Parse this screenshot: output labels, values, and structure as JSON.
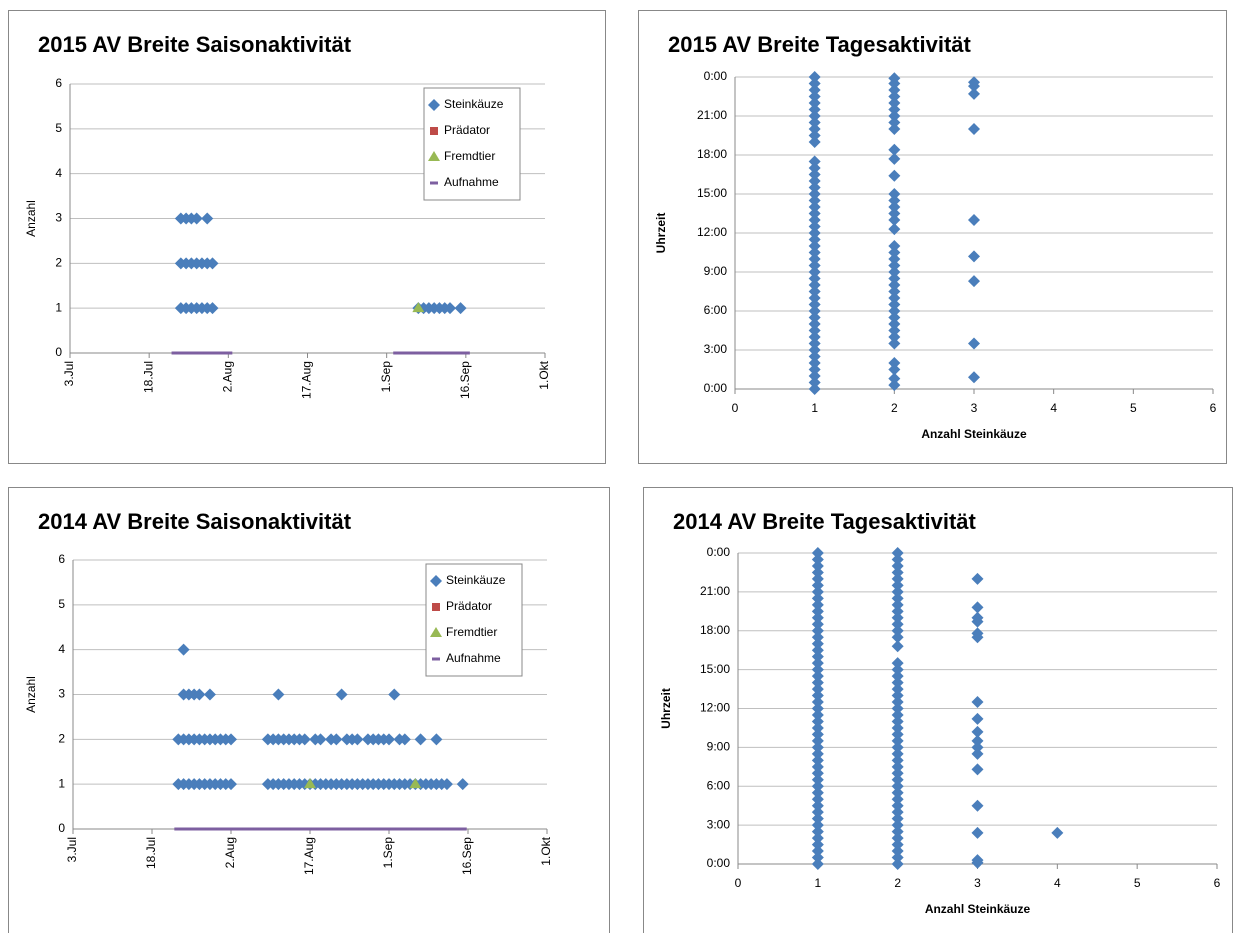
{
  "chart_data": [
    {
      "type": "scatter",
      "title": "2015 AV Breite  Saisonaktivität",
      "ylabel": "Anzahl",
      "legend": "upper right",
      "grid": true,
      "xlim": [
        184,
        274
      ],
      "xticks": [
        {
          "value": 184,
          "label": "3.Jul"
        },
        {
          "value": 199,
          "label": "18.Jul"
        },
        {
          "value": 214,
          "label": "2.Aug"
        },
        {
          "value": 229,
          "label": "17.Aug"
        },
        {
          "value": 244,
          "label": "1.Sep"
        },
        {
          "value": 259,
          "label": "16.Sep"
        },
        {
          "value": 274,
          "label": "1.Okt"
        }
      ],
      "ylim": [
        0,
        6
      ],
      "yticks": [
        0,
        1,
        2,
        3,
        4,
        5,
        6
      ],
      "series": [
        {
          "name": "Steinkäuze",
          "color": "#4a7ebb",
          "marker": "diamond",
          "x": [
            205,
            206,
            207,
            208,
            210,
            205,
            206,
            207,
            208,
            209,
            210,
            211,
            205,
            206,
            207,
            208,
            209,
            210,
            211,
            250,
            251,
            252,
            253,
            254,
            255,
            256,
            258
          ],
          "values": [
            3,
            3,
            3,
            3,
            3,
            2,
            2,
            2,
            2,
            2,
            2,
            2,
            1,
            1,
            1,
            1,
            1,
            1,
            1,
            1,
            1,
            1,
            1,
            1,
            1,
            1,
            1
          ]
        },
        {
          "name": "Prädator",
          "color": "#be4b48",
          "marker": "square",
          "x": [],
          "values": []
        },
        {
          "name": "Fremdtier",
          "color": "#98b954",
          "marker": "triangle",
          "x": [
            250
          ],
          "values": [
            1
          ]
        },
        {
          "name": "Aufnahme",
          "color": "#7d5fa0",
          "marker": "dash",
          "x": [
            204,
            205,
            206,
            207,
            208,
            209,
            210,
            211,
            212,
            213,
            214,
            246,
            247,
            248,
            249,
            250,
            251,
            252,
            253,
            254,
            255,
            256,
            257,
            258,
            259
          ],
          "values": [
            0,
            0,
            0,
            0,
            0,
            0,
            0,
            0,
            0,
            0,
            0,
            0,
            0,
            0,
            0,
            0,
            0,
            0,
            0,
            0,
            0,
            0,
            0,
            0,
            0
          ]
        }
      ]
    },
    {
      "type": "scatter",
      "title": "2015 AV Breite  Tagesaktivität",
      "xlabel": "Anzahl Steinkäuze",
      "ylabel": "Uhrzeit",
      "grid": true,
      "xlim": [
        0,
        6
      ],
      "xticks": [
        0,
        1,
        2,
        3,
        4,
        5,
        6
      ],
      "ylim": [
        0,
        24
      ],
      "yticks": [
        {
          "value": 0,
          "label": "0:00"
        },
        {
          "value": 3,
          "label": "3:00"
        },
        {
          "value": 6,
          "label": "6:00"
        },
        {
          "value": 9,
          "label": "9:00"
        },
        {
          "value": 12,
          "label": "12:00"
        },
        {
          "value": 15,
          "label": "15:00"
        },
        {
          "value": 18,
          "label": "18:00"
        },
        {
          "value": 21,
          "label": "21:00"
        },
        {
          "value": 24,
          "label": "0:00"
        }
      ],
      "series": [
        {
          "color": "#4a7ebb",
          "marker": "diamond",
          "x": 1,
          "values": [
            0,
            0.5,
            1,
            1.5,
            2,
            2.5,
            3,
            3.5,
            4,
            4.5,
            5,
            5.5,
            6,
            6.5,
            7,
            7.5,
            8,
            8.5,
            9,
            9.5,
            10,
            10.5,
            11,
            11.5,
            12,
            12.5,
            13,
            13.5,
            14,
            14.5,
            15,
            15.5,
            16,
            16.5,
            17,
            17.5,
            19,
            19.5,
            20,
            20.5,
            21,
            21.5,
            22,
            22.5,
            23,
            23.5,
            24
          ]
        },
        {
          "color": "#4a7ebb",
          "marker": "diamond",
          "x": 2,
          "values": [
            0.3,
            0.8,
            1.5,
            2,
            3.5,
            4,
            4.5,
            5,
            5.5,
            6,
            6.5,
            7,
            7.5,
            8,
            8.5,
            9,
            9.5,
            10,
            10.5,
            11,
            12.3,
            13,
            13.5,
            14,
            14.5,
            15,
            16.4,
            17.7,
            18.4,
            20,
            20.5,
            21,
            21.5,
            22,
            22.5,
            23,
            23.5,
            23.9
          ]
        },
        {
          "color": "#4a7ebb",
          "marker": "diamond",
          "x": 3,
          "values": [
            0.9,
            3.5,
            8.3,
            10.2,
            13,
            20,
            22.7,
            23.3,
            23.6
          ]
        }
      ]
    },
    {
      "type": "scatter",
      "title": "2014 AV Breite  Saisonaktivität",
      "ylabel": "Anzahl",
      "legend": "upper right",
      "grid": true,
      "xlim": [
        184,
        274
      ],
      "xticks": [
        {
          "value": 184,
          "label": "3.Jul"
        },
        {
          "value": 199,
          "label": "18.Jul"
        },
        {
          "value": 214,
          "label": "2.Aug"
        },
        {
          "value": 229,
          "label": "17.Aug"
        },
        {
          "value": 244,
          "label": "1.Sep"
        },
        {
          "value": 259,
          "label": "16.Sep"
        },
        {
          "value": 274,
          "label": "1.Okt"
        }
      ],
      "ylim": [
        0,
        6
      ],
      "yticks": [
        0,
        1,
        2,
        3,
        4,
        5,
        6
      ],
      "series": [
        {
          "name": "Steinkäuze",
          "color": "#4a7ebb",
          "marker": "diamond",
          "x": [
            205,
            205,
            206,
            207,
            208,
            210,
            223,
            235,
            245,
            204,
            205,
            206,
            207,
            208,
            209,
            210,
            211,
            212,
            213,
            214,
            221,
            222,
            223,
            224,
            225,
            226,
            227,
            228,
            230,
            231,
            233,
            234,
            236,
            237,
            238,
            240,
            241,
            242,
            243,
            244,
            246,
            247,
            250,
            253,
            204,
            205,
            206,
            207,
            208,
            209,
            210,
            211,
            212,
            213,
            214,
            221,
            222,
            223,
            224,
            225,
            226,
            227,
            228,
            229,
            230,
            231,
            232,
            233,
            234,
            235,
            236,
            237,
            238,
            239,
            240,
            241,
            242,
            243,
            244,
            245,
            246,
            247,
            248,
            249,
            250,
            251,
            252,
            253,
            254,
            255,
            258
          ],
          "values": [
            4,
            3,
            3,
            3,
            3,
            3,
            3,
            3,
            3,
            2,
            2,
            2,
            2,
            2,
            2,
            2,
            2,
            2,
            2,
            2,
            2,
            2,
            2,
            2,
            2,
            2,
            2,
            2,
            2,
            2,
            2,
            2,
            2,
            2,
            2,
            2,
            2,
            2,
            2,
            2,
            2,
            2,
            2,
            2,
            1,
            1,
            1,
            1,
            1,
            1,
            1,
            1,
            1,
            1,
            1,
            1,
            1,
            1,
            1,
            1,
            1,
            1,
            1,
            1,
            1,
            1,
            1,
            1,
            1,
            1,
            1,
            1,
            1,
            1,
            1,
            1,
            1,
            1,
            1,
            1,
            1,
            1,
            1,
            1,
            1,
            1,
            1,
            1,
            1,
            1,
            1
          ]
        },
        {
          "name": "Prädator",
          "color": "#be4b48",
          "marker": "square",
          "x": [],
          "values": []
        },
        {
          "name": "Fremdtier",
          "color": "#98b954",
          "marker": "triangle",
          "x": [
            229,
            249
          ],
          "values": [
            1,
            1
          ]
        },
        {
          "name": "Aufnahme",
          "color": "#7d5fa0",
          "marker": "dash",
          "x": [
            204,
            205,
            206,
            207,
            208,
            209,
            210,
            211,
            212,
            213,
            214,
            215,
            216,
            217,
            218,
            219,
            220,
            221,
            222,
            223,
            224,
            225,
            226,
            227,
            228,
            229,
            230,
            231,
            232,
            233,
            234,
            235,
            236,
            237,
            238,
            239,
            240,
            241,
            242,
            243,
            244,
            245,
            246,
            247,
            248,
            249,
            250,
            251,
            252,
            253,
            254,
            255,
            256,
            257,
            258
          ],
          "values": [
            0,
            0,
            0,
            0,
            0,
            0,
            0,
            0,
            0,
            0,
            0,
            0,
            0,
            0,
            0,
            0,
            0,
            0,
            0,
            0,
            0,
            0,
            0,
            0,
            0,
            0,
            0,
            0,
            0,
            0,
            0,
            0,
            0,
            0,
            0,
            0,
            0,
            0,
            0,
            0,
            0,
            0,
            0,
            0,
            0,
            0,
            0,
            0,
            0,
            0,
            0,
            0,
            0,
            0,
            0
          ]
        }
      ]
    },
    {
      "type": "scatter",
      "title": "2014 AV Breite  Tagesaktivität",
      "xlabel": "Anzahl Steinkäuze",
      "ylabel": "Uhrzeit",
      "grid": true,
      "xlim": [
        0,
        6
      ],
      "xticks": [
        0,
        1,
        2,
        3,
        4,
        5,
        6
      ],
      "ylim": [
        0,
        24
      ],
      "yticks": [
        {
          "value": 0,
          "label": "0:00"
        },
        {
          "value": 3,
          "label": "3:00"
        },
        {
          "value": 6,
          "label": "6:00"
        },
        {
          "value": 9,
          "label": "9:00"
        },
        {
          "value": 12,
          "label": "12:00"
        },
        {
          "value": 15,
          "label": "15:00"
        },
        {
          "value": 18,
          "label": "18:00"
        },
        {
          "value": 21,
          "label": "21:00"
        },
        {
          "value": 24,
          "label": "0:00"
        }
      ],
      "series": [
        {
          "color": "#4a7ebb",
          "marker": "diamond",
          "x": 1,
          "values": [
            0,
            0.5,
            1,
            1.5,
            2,
            2.5,
            3,
            3.5,
            4,
            4.5,
            5,
            5.5,
            6,
            6.5,
            7,
            7.5,
            8,
            8.5,
            9,
            9.5,
            10,
            10.5,
            11,
            11.5,
            12,
            12.5,
            13,
            13.5,
            14,
            14.5,
            15,
            15.5,
            16,
            16.5,
            17,
            17.5,
            18,
            18.5,
            19,
            19.5,
            20,
            20.5,
            21,
            21.5,
            22,
            22.5,
            23,
            23.5,
            24
          ]
        },
        {
          "color": "#4a7ebb",
          "marker": "diamond",
          "x": 2,
          "values": [
            0,
            0.5,
            1,
            1.5,
            2,
            2.5,
            3,
            3.5,
            4,
            4.5,
            5,
            5.5,
            6,
            6.5,
            7,
            7.5,
            8,
            8.5,
            9,
            9.5,
            10,
            10.5,
            11,
            11.5,
            12,
            12.5,
            13,
            13.5,
            14,
            14.5,
            15,
            15.5,
            16.8,
            17.5,
            18,
            18.5,
            19,
            19.5,
            20,
            20.5,
            21,
            21.5,
            22,
            22.5,
            23,
            23.5,
            24
          ]
        },
        {
          "color": "#4a7ebb",
          "marker": "diamond",
          "x": 3,
          "values": [
            0.1,
            0.3,
            2.4,
            4.5,
            7.3,
            8.5,
            9,
            9.5,
            10.2,
            11.2,
            12.5,
            17.5,
            17.8,
            18.7,
            19,
            19.8,
            22
          ]
        },
        {
          "color": "#4a7ebb",
          "marker": "diamond",
          "x": 4,
          "values": [
            2.4
          ]
        }
      ]
    }
  ]
}
